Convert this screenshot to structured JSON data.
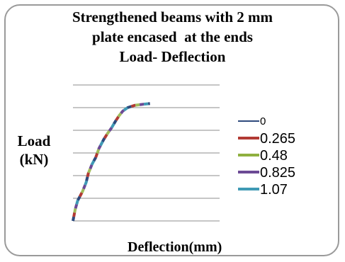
{
  "chart_data": {
    "type": "line",
    "title_lines": [
      "Strengthened beams with 2 mm",
      "plate encased  at the ends",
      "Load- Deflection"
    ],
    "xlabel": "Deflection(mm)",
    "ylabel_lines": [
      "Load",
      "(kN)"
    ],
    "grid": true,
    "legend_position": "right",
    "series": [
      {
        "name": "0",
        "color": "#2e4a7d"
      },
      {
        "name": "0.265",
        "color": "#b23a34"
      },
      {
        "name": "0.48",
        "color": "#8fb03f"
      },
      {
        "name": "0.825",
        "color": "#6c4a95"
      },
      {
        "name": "1.07",
        "color": "#3f9ab5"
      }
    ],
    "curve_points": [
      [
        0,
        0
      ],
      [
        0.6,
        5
      ],
      [
        1.3,
        9
      ],
      [
        2.6,
        13
      ],
      [
        3.6,
        17
      ],
      [
        4.2,
        21
      ],
      [
        5.2,
        25
      ],
      [
        6.2,
        28
      ],
      [
        7.1,
        32
      ],
      [
        8.4,
        36
      ],
      [
        9.4,
        38.5
      ],
      [
        10.5,
        41
      ],
      [
        11.6,
        44
      ],
      [
        12.6,
        46.5
      ],
      [
        13.6,
        48.5
      ],
      [
        14.9,
        50
      ],
      [
        16.8,
        51
      ],
      [
        19.2,
        51.5
      ],
      [
        21.0,
        51.8
      ]
    ],
    "gridline_count": 7
  }
}
